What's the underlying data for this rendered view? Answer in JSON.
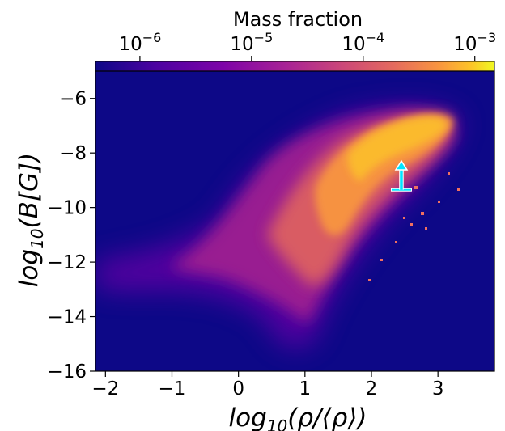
{
  "chart_data": {
    "type": "heatmap",
    "title": "",
    "xlabel": "log10(ρ/⟨ρ⟩)",
    "ylabel": "log10(B[G])",
    "xlim": [
      -2.15,
      3.85
    ],
    "ylim": [
      -16,
      -5
    ],
    "x_ticks": [
      -2,
      -1,
      0,
      1,
      2,
      3
    ],
    "x_tick_labels": [
      "−2",
      "−1",
      "0",
      "1",
      "2",
      "3"
    ],
    "y_ticks": [
      -16,
      -14,
      -12,
      -10,
      -8,
      -6
    ],
    "y_tick_labels": [
      "−16",
      "−14",
      "−12",
      "−10",
      "−8",
      "−6"
    ],
    "colorbar": {
      "label": "Mass fraction",
      "position": "top",
      "scale": "log",
      "colormap": "plasma",
      "range": [
        4e-07,
        0.0015
      ],
      "ticks": [
        1e-06,
        1e-05,
        0.0001,
        0.001
      ],
      "tick_labels": [
        {
          "base": "10",
          "exp": "−6"
        },
        {
          "base": "10",
          "exp": "−5"
        },
        {
          "base": "10",
          "exp": "−4"
        },
        {
          "base": "10",
          "exp": "−3"
        }
      ]
    },
    "background_color": "#0d0887",
    "density_regions": [
      {
        "x": -1.6,
        "y": -12.3,
        "value": 1.5e-06
      },
      {
        "x": -0.6,
        "y": -12.0,
        "value": 3e-06
      },
      {
        "x": 0.3,
        "y": -10.5,
        "value": 8e-06
      },
      {
        "x": 1.0,
        "y": -9.8,
        "value": 2.5e-05
      },
      {
        "x": 1.6,
        "y": -8.8,
        "value": 0.00012
      },
      {
        "x": 2.3,
        "y": -7.8,
        "value": 0.0004
      },
      {
        "x": 2.8,
        "y": -7.2,
        "value": 0.0007
      },
      {
        "x": 3.0,
        "y": -6.9,
        "value": 0.0005
      }
    ],
    "annotation": {
      "type": "arrow",
      "x": 2.45,
      "y_from": -9.35,
      "y_to": -8.35,
      "color": "#00e5ff"
    }
  }
}
